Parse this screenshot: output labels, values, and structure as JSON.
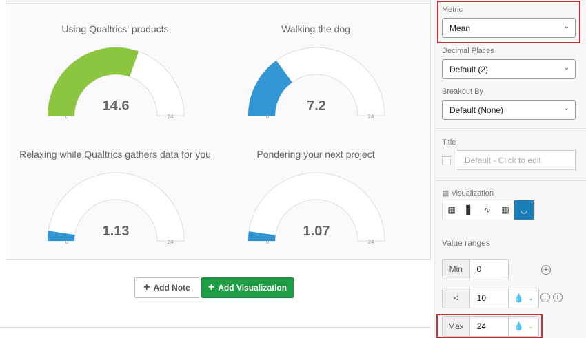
{
  "gauges": [
    {
      "title": "Using Qualtrics' products",
      "value": 14.6,
      "display": "14.6",
      "min": "0",
      "max": "24",
      "color": "#8cc63f"
    },
    {
      "title": "Walking the dog",
      "value": 7.2,
      "display": "7.2",
      "min": "0",
      "max": "24",
      "color": "#3196d3"
    },
    {
      "title": "Relaxing while Qualtrics gathers data for you",
      "value": 1.13,
      "display": "1.13",
      "min": "0",
      "max": "24",
      "color": "#3196d3"
    },
    {
      "title": "Pondering your next project",
      "value": 1.07,
      "display": "1.07",
      "min": "0",
      "max": "24",
      "color": "#3196d3"
    }
  ],
  "gauge_range": [
    0,
    24
  ],
  "buttons": {
    "add_note": "Add Note",
    "add_visualization": "Add Visualization"
  },
  "side": {
    "metric_label": "Metric",
    "metric_value": "Mean",
    "decimal_label": "Decimal Places",
    "decimal_value": "Default (2)",
    "breakout_label": "Breakout By",
    "breakout_value": "Default (None)",
    "title_label": "Title",
    "title_placeholder": "Default - Click to edit",
    "viz_label": "Visualization",
    "viz_types": [
      "table-grid-icon",
      "bar-chart-icon",
      "line-chart-icon",
      "data-table-icon",
      "gauge-icon"
    ],
    "viz_selected": "gauge-icon",
    "ranges_label": "Value ranges",
    "ranges": [
      {
        "key": "Min",
        "value": "0"
      },
      {
        "key": "<",
        "value": "10",
        "color": "#3196d3"
      },
      {
        "key": "Max",
        "value": "24",
        "color": "#8cc63f"
      }
    ]
  },
  "colors": {
    "accent": "#1a7fb6",
    "highlight": "#c8303a",
    "button_green": "#1f9d45"
  }
}
